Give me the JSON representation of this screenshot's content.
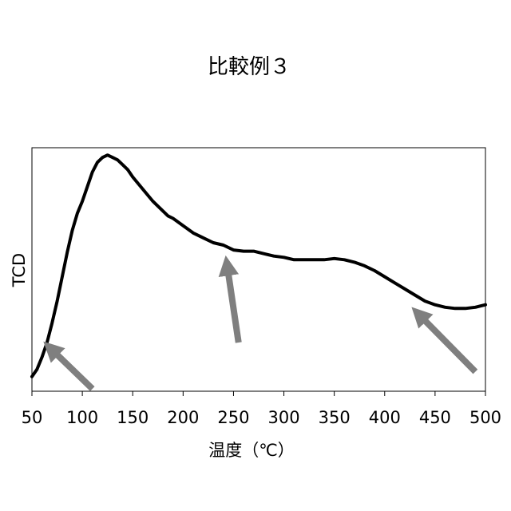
{
  "chart_data": {
    "type": "line",
    "title": "比較例３",
    "xlabel": "温度（℃）",
    "ylabel": "TCD",
    "xlim": [
      50,
      500
    ],
    "ylim": [
      0,
      1
    ],
    "grid": false,
    "legend": "none",
    "x_ticks": [
      "50",
      "100",
      "150",
      "200",
      "250",
      "300",
      "350",
      "400",
      "450",
      "500"
    ],
    "y_ticks": [],
    "line_color": "#000000",
    "arrow_color": "#7f7f7f",
    "series": [
      {
        "x": [
          50,
          55,
          60,
          65,
          70,
          75,
          80,
          85,
          90,
          95,
          100,
          105,
          110,
          115,
          120,
          125,
          130,
          135,
          140,
          145,
          150,
          160,
          170,
          180,
          185,
          190,
          200,
          210,
          220,
          230,
          240,
          250,
          260,
          270,
          280,
          290,
          300,
          310,
          320,
          330,
          340,
          350,
          360,
          370,
          380,
          390,
          400,
          410,
          420,
          430,
          440,
          450,
          460,
          470,
          480,
          490,
          500
        ],
        "y": [
          0.06,
          0.09,
          0.14,
          0.2,
          0.28,
          0.37,
          0.47,
          0.57,
          0.66,
          0.73,
          0.78,
          0.84,
          0.9,
          0.94,
          0.96,
          0.97,
          0.96,
          0.95,
          0.93,
          0.91,
          0.88,
          0.83,
          0.78,
          0.74,
          0.72,
          0.71,
          0.68,
          0.65,
          0.63,
          0.61,
          0.6,
          0.58,
          0.575,
          0.575,
          0.565,
          0.555,
          0.55,
          0.54,
          0.54,
          0.54,
          0.54,
          0.545,
          0.54,
          0.53,
          0.515,
          0.495,
          0.47,
          0.445,
          0.42,
          0.395,
          0.37,
          0.355,
          0.345,
          0.34,
          0.34,
          0.345,
          0.355
        ]
      }
    ],
    "annotations": [
      {
        "type": "arrow",
        "from": [
          110,
          0.01
        ],
        "to": [
          75,
          0.15
        ]
      },
      {
        "type": "arrow",
        "from": [
          255,
          0.2
        ],
        "to": [
          245,
          0.48
        ]
      },
      {
        "type": "arrow",
        "from": [
          490,
          0.08
        ],
        "to": [
          440,
          0.29
        ]
      }
    ]
  }
}
